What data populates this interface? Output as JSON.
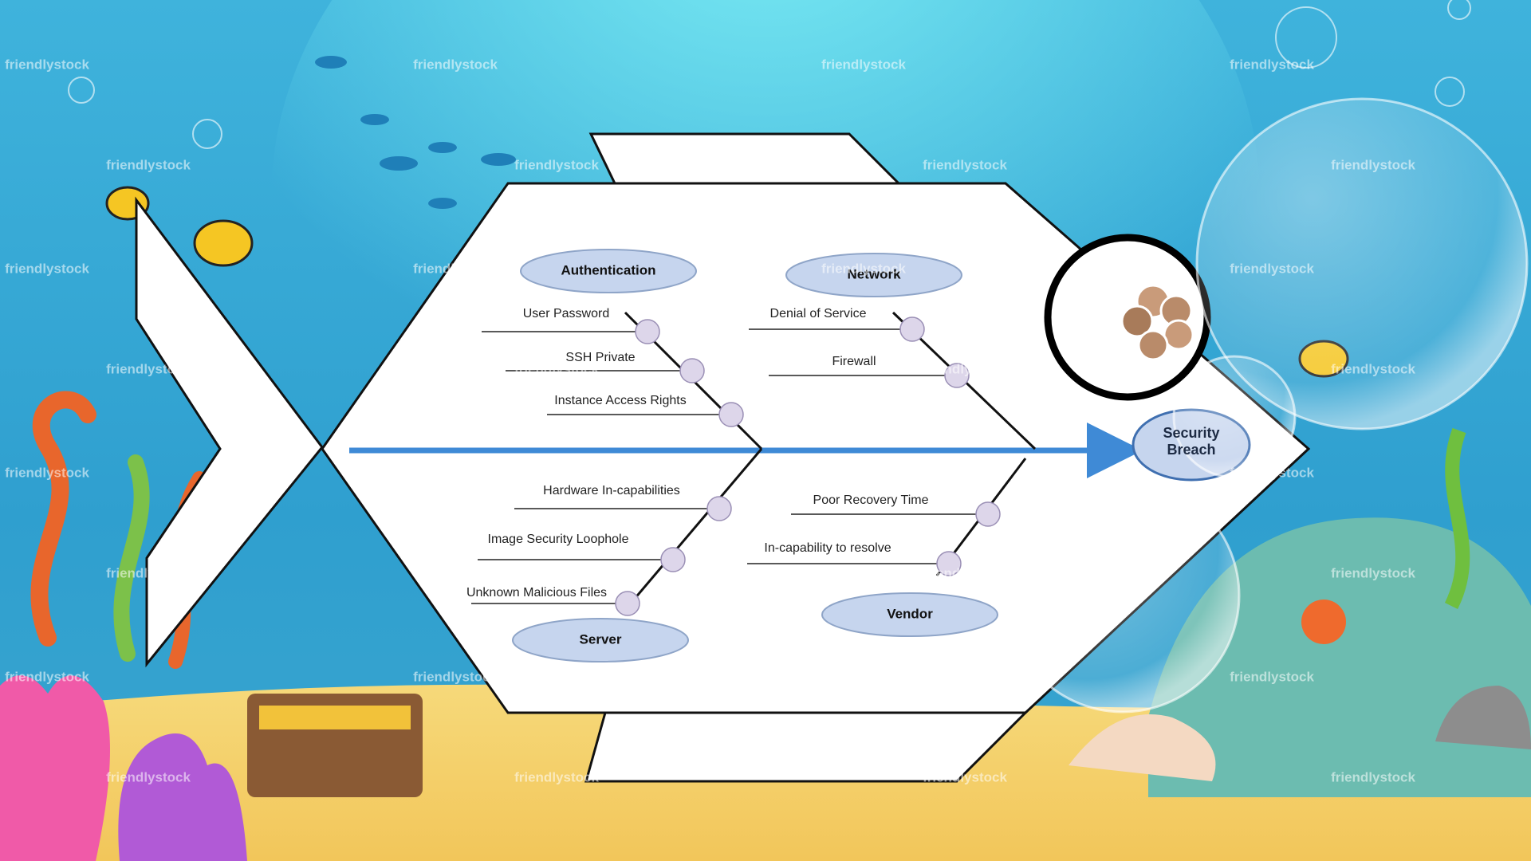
{
  "diagram": {
    "effect": "Security Breach",
    "categories": [
      {
        "label": "Authentication",
        "causes": [
          "User Password",
          "SSH Private",
          "Instance Access Rights"
        ]
      },
      {
        "label": "Network",
        "causes": [
          "Denial of Service",
          "Firewall"
        ]
      },
      {
        "label": "Server",
        "causes": [
          "Hardware In-capabilities",
          "Image Security Loophole",
          "Unknown Malicious Files"
        ]
      },
      {
        "label": "Vendor",
        "causes": [
          "Poor Recovery Time",
          "In-capability to resolve"
        ]
      }
    ]
  },
  "watermark": "friendlystock"
}
